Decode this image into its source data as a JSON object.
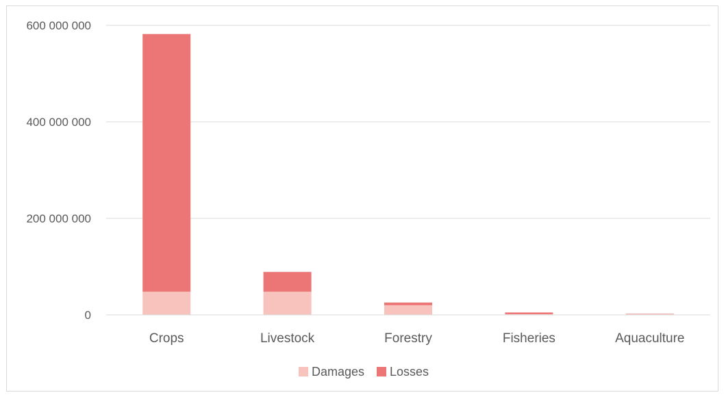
{
  "chart_data": {
    "type": "bar",
    "stacked": true,
    "title": "",
    "xlabel": "",
    "ylabel": "",
    "categories": [
      "Crops",
      "Livestock",
      "Forestry",
      "Fisheries",
      "Aquaculture"
    ],
    "series": [
      {
        "name": "Damages",
        "color": "#f8c3bd",
        "values": [
          48000000,
          48000000,
          20000000,
          1500000,
          2000000
        ]
      },
      {
        "name": "Losses",
        "color": "#ec7575",
        "values": [
          534000000,
          41000000,
          5500000,
          3500000,
          500000
        ]
      }
    ],
    "ylim": [
      0,
      600000000
    ],
    "yticks": [
      0,
      200000000,
      400000000,
      600000000
    ],
    "ytick_labels": [
      "0",
      "200 000 000",
      "400 000 000",
      "600 000 000"
    ],
    "grid": true,
    "legend": "bottom"
  }
}
